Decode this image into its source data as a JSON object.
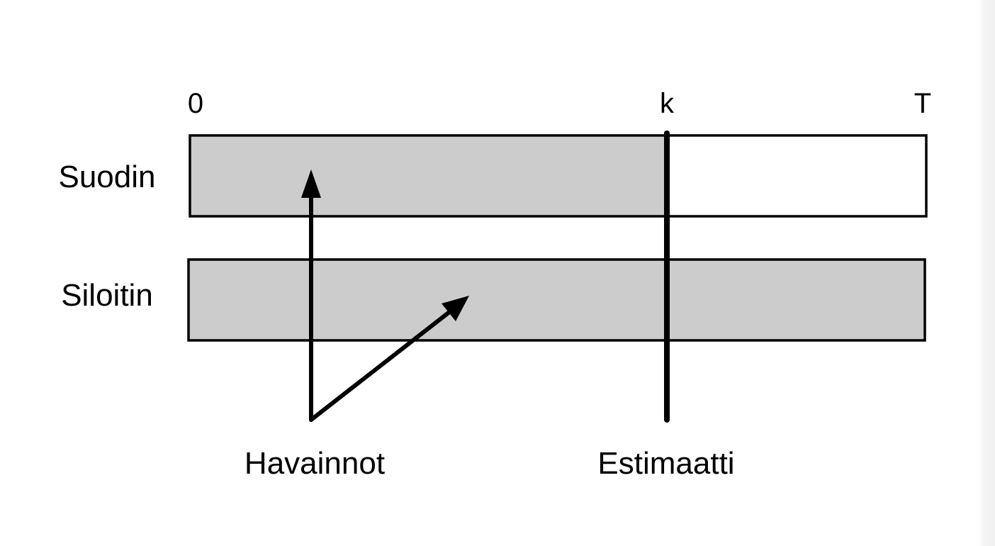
{
  "timeline": {
    "start": "0",
    "current": "k",
    "end": "T"
  },
  "rows": [
    {
      "label": "Suodin",
      "shaded_until": "k"
    },
    {
      "label": "Siloitin",
      "shaded_until": "T"
    }
  ],
  "annotations": {
    "observations": "Havainnot",
    "estimate": "Estimaatti"
  },
  "colors": {
    "shaded": "#cccccc",
    "unshaded": "#ffffff",
    "stroke": "#000000"
  }
}
